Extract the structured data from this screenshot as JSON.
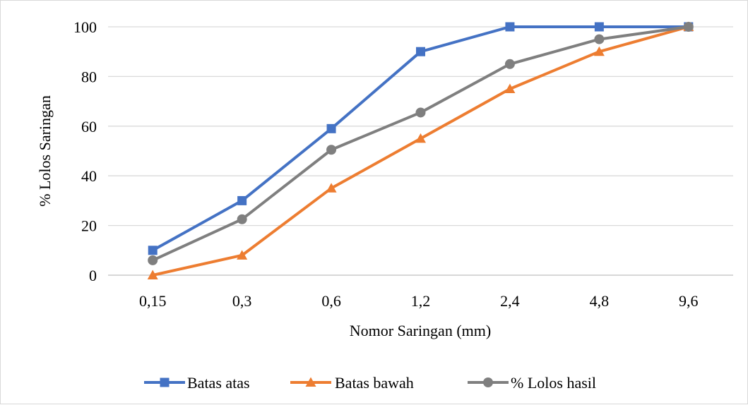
{
  "chart_data": {
    "type": "line",
    "categories": [
      "0,15",
      "0,3",
      "0,6",
      "1,2",
      "2,4",
      "4,8",
      "9,6"
    ],
    "series": [
      {
        "name": "Batas atas",
        "values": [
          10,
          30,
          59,
          90,
          100,
          100,
          100
        ],
        "color": "#4472C4",
        "marker": "square"
      },
      {
        "name": "Batas bawah",
        "values": [
          0,
          8,
          35,
          55,
          75,
          90,
          100
        ],
        "color": "#ED7D31",
        "marker": "triangle"
      },
      {
        "name": "% Lolos hasil",
        "values": [
          6,
          22.5,
          50.5,
          65.5,
          85,
          95,
          100
        ],
        "color": "#7F7F7F",
        "marker": "circle"
      }
    ],
    "xlabel": "Nomor Saringan (mm)",
    "ylabel": "% Lolos Saringan",
    "ylim": [
      0,
      100
    ],
    "yticks": [
      "0",
      "20",
      "40",
      "60",
      "80",
      "100"
    ],
    "grid": true,
    "legend": "bottom"
  }
}
